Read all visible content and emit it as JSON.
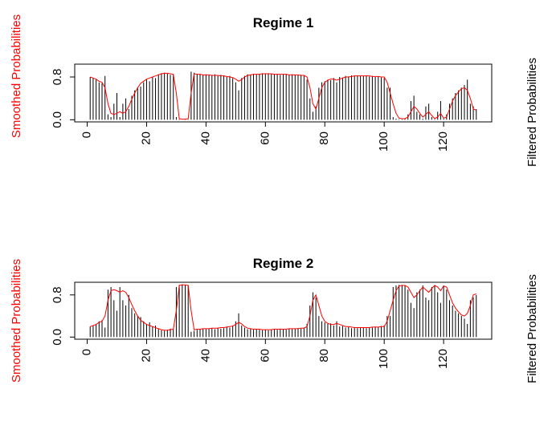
{
  "chart_data": [
    {
      "type": "line",
      "title": "Regime 1",
      "ylabel": "Smoothed Probabilities",
      "y2label": "Filtered Probabilities",
      "smoothed_color": "#ff0000",
      "filtered_color": "#000000",
      "xlim": [
        -4.2,
        136.2
      ],
      "xticks": [
        0,
        20,
        40,
        60,
        80,
        100,
        120
      ],
      "ylim": [
        -0.04,
        1.04
      ],
      "yticks": [
        {
          "value": 0,
          "label": "0.0"
        },
        0.8
      ],
      "x": [
        1,
        2,
        3,
        4,
        5,
        6,
        7,
        8,
        9,
        10,
        11,
        12,
        13,
        14,
        15,
        16,
        17,
        18,
        19,
        20,
        21,
        22,
        23,
        24,
        25,
        26,
        27,
        28,
        29,
        30,
        31,
        32,
        33,
        34,
        35,
        36,
        37,
        38,
        39,
        40,
        41,
        42,
        43,
        44,
        45,
        46,
        47,
        48,
        49,
        50,
        51,
        52,
        53,
        54,
        55,
        56,
        57,
        58,
        59,
        60,
        61,
        62,
        63,
        64,
        65,
        66,
        67,
        68,
        69,
        70,
        71,
        72,
        73,
        74,
        75,
        76,
        77,
        78,
        79,
        80,
        81,
        82,
        83,
        84,
        85,
        86,
        87,
        88,
        89,
        90,
        91,
        92,
        93,
        94,
        95,
        96,
        97,
        98,
        99,
        100,
        101,
        102,
        103,
        104,
        105,
        106,
        107,
        108,
        109,
        110,
        111,
        112,
        113,
        114,
        115,
        116,
        117,
        118,
        119,
        120,
        121,
        122,
        123,
        124,
        125,
        126,
        127,
        128,
        129,
        130,
        131
      ],
      "smoothed_values": [
        0.8,
        0.78,
        0.76,
        0.72,
        0.7,
        0.6,
        0.3,
        0.12,
        0.1,
        0.12,
        0.15,
        0.12,
        0.15,
        0.25,
        0.38,
        0.5,
        0.6,
        0.68,
        0.72,
        0.76,
        0.78,
        0.8,
        0.82,
        0.84,
        0.86,
        0.87,
        0.87,
        0.86,
        0.85,
        0.5,
        0.02,
        0.01,
        0.01,
        0.02,
        0.5,
        0.86,
        0.85,
        0.85,
        0.84,
        0.84,
        0.84,
        0.83,
        0.83,
        0.83,
        0.82,
        0.82,
        0.81,
        0.8,
        0.79,
        0.76,
        0.72,
        0.75,
        0.8,
        0.83,
        0.84,
        0.85,
        0.85,
        0.85,
        0.86,
        0.86,
        0.86,
        0.86,
        0.85,
        0.85,
        0.85,
        0.85,
        0.85,
        0.84,
        0.84,
        0.84,
        0.84,
        0.83,
        0.83,
        0.8,
        0.6,
        0.3,
        0.2,
        0.4,
        0.6,
        0.7,
        0.74,
        0.76,
        0.76,
        0.74,
        0.76,
        0.78,
        0.8,
        0.8,
        0.81,
        0.82,
        0.82,
        0.82,
        0.82,
        0.82,
        0.82,
        0.81,
        0.81,
        0.81,
        0.8,
        0.8,
        0.7,
        0.5,
        0.3,
        0.12,
        0.03,
        0.02,
        0.02,
        0.05,
        0.15,
        0.25,
        0.2,
        0.12,
        0.05,
        0.1,
        0.15,
        0.08,
        0.02,
        0.05,
        0.12,
        0.03,
        0.05,
        0.2,
        0.35,
        0.45,
        0.52,
        0.58,
        0.6,
        0.55,
        0.4,
        0.2,
        0.18
      ],
      "filtered_values": [
        0.8,
        0.78,
        0.75,
        0.7,
        0.68,
        0.82,
        0.1,
        0.05,
        0.3,
        0.5,
        0.05,
        0.3,
        0.4,
        0.2,
        0.45,
        0.55,
        0.6,
        0.62,
        0.7,
        0.75,
        0.72,
        0.8,
        0.78,
        0.85,
        0.87,
        0.88,
        0.86,
        0.84,
        0.85,
        0.05,
        0.01,
        0.0,
        0.01,
        0.01,
        0.9,
        0.88,
        0.86,
        0.85,
        0.84,
        0.85,
        0.84,
        0.83,
        0.85,
        0.82,
        0.84,
        0.83,
        0.8,
        0.82,
        0.78,
        0.7,
        0.55,
        0.78,
        0.82,
        0.85,
        0.84,
        0.86,
        0.85,
        0.86,
        0.87,
        0.86,
        0.87,
        0.86,
        0.85,
        0.86,
        0.84,
        0.85,
        0.86,
        0.84,
        0.85,
        0.84,
        0.83,
        0.84,
        0.82,
        0.75,
        0.4,
        0.15,
        0.25,
        0.6,
        0.7,
        0.72,
        0.75,
        0.74,
        0.78,
        0.7,
        0.8,
        0.79,
        0.82,
        0.81,
        0.83,
        0.82,
        0.83,
        0.82,
        0.82,
        0.83,
        0.81,
        0.82,
        0.8,
        0.81,
        0.79,
        0.78,
        0.6,
        0.6,
        0.05,
        0.02,
        0.01,
        0.01,
        0.02,
        0.1,
        0.35,
        0.45,
        0.15,
        0.1,
        0.02,
        0.25,
        0.3,
        0.05,
        0.01,
        0.15,
        0.35,
        0.02,
        0.1,
        0.3,
        0.4,
        0.5,
        0.55,
        0.6,
        0.65,
        0.75,
        0.3,
        0.25,
        0.2
      ]
    },
    {
      "type": "line",
      "title": "Regime 2",
      "ylabel": "Smoothed Probabilities",
      "y2label": "Filtered Probabilities",
      "smoothed_color": "#ff0000",
      "filtered_color": "#000000",
      "xlim": [
        -4.2,
        136.2
      ],
      "xticks": [
        0,
        20,
        40,
        60,
        80,
        100,
        120
      ],
      "ylim": [
        -0.04,
        1.04
      ],
      "yticks": [
        {
          "value": 0,
          "label": "0.0"
        },
        0.8
      ],
      "x": [
        1,
        2,
        3,
        4,
        5,
        6,
        7,
        8,
        9,
        10,
        11,
        12,
        13,
        14,
        15,
        16,
        17,
        18,
        19,
        20,
        21,
        22,
        23,
        24,
        25,
        26,
        27,
        28,
        29,
        30,
        31,
        32,
        33,
        34,
        35,
        36,
        37,
        38,
        39,
        40,
        41,
        42,
        43,
        44,
        45,
        46,
        47,
        48,
        49,
        50,
        51,
        52,
        53,
        54,
        55,
        56,
        57,
        58,
        59,
        60,
        61,
        62,
        63,
        64,
        65,
        66,
        67,
        68,
        69,
        70,
        71,
        72,
        73,
        74,
        75,
        76,
        77,
        78,
        79,
        80,
        81,
        82,
        83,
        84,
        85,
        86,
        87,
        88,
        89,
        90,
        91,
        92,
        93,
        94,
        95,
        96,
        97,
        98,
        99,
        100,
        101,
        102,
        103,
        104,
        105,
        106,
        107,
        108,
        109,
        110,
        111,
        112,
        113,
        114,
        115,
        116,
        117,
        118,
        119,
        120,
        121,
        122,
        123,
        124,
        125,
        126,
        127,
        128,
        129,
        130,
        131
      ],
      "smoothed_values": [
        0.2,
        0.22,
        0.24,
        0.28,
        0.3,
        0.4,
        0.7,
        0.88,
        0.9,
        0.88,
        0.85,
        0.88,
        0.85,
        0.75,
        0.62,
        0.5,
        0.4,
        0.32,
        0.28,
        0.24,
        0.22,
        0.2,
        0.18,
        0.16,
        0.14,
        0.13,
        0.13,
        0.14,
        0.15,
        0.5,
        0.98,
        0.99,
        0.99,
        0.98,
        0.5,
        0.14,
        0.15,
        0.15,
        0.16,
        0.16,
        0.16,
        0.17,
        0.17,
        0.17,
        0.18,
        0.18,
        0.19,
        0.2,
        0.21,
        0.24,
        0.28,
        0.25,
        0.2,
        0.17,
        0.16,
        0.15,
        0.15,
        0.15,
        0.14,
        0.14,
        0.14,
        0.14,
        0.15,
        0.15,
        0.15,
        0.15,
        0.15,
        0.16,
        0.16,
        0.16,
        0.16,
        0.17,
        0.17,
        0.2,
        0.4,
        0.7,
        0.8,
        0.6,
        0.4,
        0.3,
        0.26,
        0.24,
        0.24,
        0.26,
        0.24,
        0.22,
        0.2,
        0.2,
        0.19,
        0.18,
        0.18,
        0.18,
        0.18,
        0.18,
        0.18,
        0.19,
        0.19,
        0.19,
        0.2,
        0.2,
        0.3,
        0.5,
        0.7,
        0.88,
        0.97,
        0.98,
        0.98,
        0.95,
        0.85,
        0.75,
        0.8,
        0.88,
        0.95,
        0.9,
        0.85,
        0.92,
        0.98,
        0.95,
        0.88,
        0.97,
        0.95,
        0.8,
        0.65,
        0.55,
        0.48,
        0.42,
        0.4,
        0.45,
        0.6,
        0.8,
        0.82
      ],
      "filtered_values": [
        0.2,
        0.22,
        0.25,
        0.3,
        0.32,
        0.18,
        0.9,
        0.95,
        0.7,
        0.5,
        0.95,
        0.7,
        0.6,
        0.8,
        0.55,
        0.45,
        0.4,
        0.38,
        0.3,
        0.25,
        0.28,
        0.2,
        0.22,
        0.15,
        0.13,
        0.12,
        0.14,
        0.16,
        0.15,
        0.95,
        0.99,
        1.0,
        0.99,
        0.99,
        0.1,
        0.12,
        0.14,
        0.15,
        0.16,
        0.15,
        0.16,
        0.17,
        0.15,
        0.18,
        0.16,
        0.17,
        0.2,
        0.18,
        0.22,
        0.3,
        0.45,
        0.22,
        0.18,
        0.15,
        0.16,
        0.14,
        0.15,
        0.14,
        0.13,
        0.14,
        0.13,
        0.14,
        0.15,
        0.14,
        0.16,
        0.15,
        0.14,
        0.16,
        0.15,
        0.16,
        0.17,
        0.16,
        0.18,
        0.25,
        0.6,
        0.85,
        0.75,
        0.4,
        0.3,
        0.28,
        0.25,
        0.26,
        0.22,
        0.3,
        0.2,
        0.21,
        0.18,
        0.19,
        0.17,
        0.18,
        0.17,
        0.18,
        0.18,
        0.17,
        0.19,
        0.18,
        0.2,
        0.19,
        0.21,
        0.22,
        0.4,
        0.4,
        0.95,
        0.98,
        0.99,
        0.99,
        0.98,
        0.9,
        0.65,
        0.55,
        0.85,
        0.9,
        0.98,
        0.75,
        0.7,
        0.95,
        0.99,
        0.85,
        0.65,
        0.98,
        0.9,
        0.7,
        0.6,
        0.5,
        0.45,
        0.4,
        0.35,
        0.25,
        0.7,
        0.75,
        0.8
      ]
    }
  ]
}
